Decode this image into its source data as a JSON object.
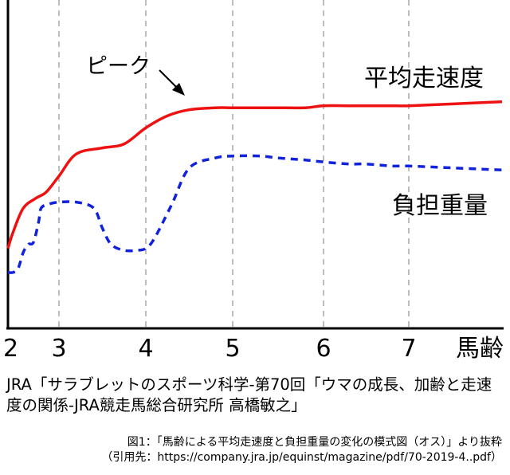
{
  "chart_data": {
    "type": "line",
    "x_ticks": [
      "2",
      "3",
      "4",
      "5",
      "6",
      "7"
    ],
    "x_end_label": "馬齢",
    "grid": "vertical dashed",
    "series": [
      {
        "name": "平均走速度",
        "style": "solid",
        "color": "#ee1111",
        "x": [
          2.0,
          2.1,
          2.3,
          2.55,
          2.75,
          3.0,
          3.2,
          3.5,
          3.75,
          4.0,
          4.25,
          4.5,
          4.8,
          5.0,
          5.3,
          5.5,
          5.8,
          6.0,
          6.3,
          6.5,
          6.8,
          7.0,
          7.5,
          8.0
        ],
        "y": [
          0.2,
          0.28,
          0.4,
          0.45,
          0.48,
          0.56,
          0.67,
          0.7,
          0.72,
          0.8,
          0.86,
          0.89,
          0.9,
          0.9,
          0.9,
          0.9,
          0.9,
          0.91,
          0.91,
          0.91,
          0.91,
          0.91,
          0.92,
          0.93
        ]
      },
      {
        "name": "負担重量",
        "style": "dashed",
        "color": "#1122dd",
        "x": [
          2.0,
          2.1,
          2.2,
          2.3,
          2.4,
          2.5,
          2.6,
          2.65,
          2.8,
          3.0,
          3.2,
          3.4,
          3.5,
          3.6,
          3.75,
          3.9,
          4.0,
          4.1,
          4.3,
          4.5,
          4.8,
          5.0,
          5.3,
          5.5,
          5.8,
          6.0,
          6.3,
          6.5,
          6.8,
          7.0,
          7.5,
          8.0
        ],
        "y": [
          0.08,
          0.08,
          0.1,
          0.18,
          0.22,
          0.23,
          0.33,
          0.4,
          0.42,
          0.43,
          0.43,
          0.4,
          0.3,
          0.22,
          0.19,
          0.19,
          0.2,
          0.25,
          0.42,
          0.6,
          0.65,
          0.66,
          0.66,
          0.65,
          0.64,
          0.63,
          0.62,
          0.62,
          0.61,
          0.61,
          0.6,
          0.59
        ]
      }
    ],
    "annotations": [
      "ピーク"
    ]
  },
  "source_text": "JRA「サラブレットのスポーツ科学-第70回「ウマの成長、加齢と走速度の関係-JRA競走馬総合研究所 高橋敏之」",
  "caption_line1": "図1：「馬齢による平均走速度と負担重量の変化の模式図（オス）」より抜粋",
  "caption_line2": "（引用先：https://company.jra.jp/equinst/magazine/pdf/70-2019-4..pdf）"
}
